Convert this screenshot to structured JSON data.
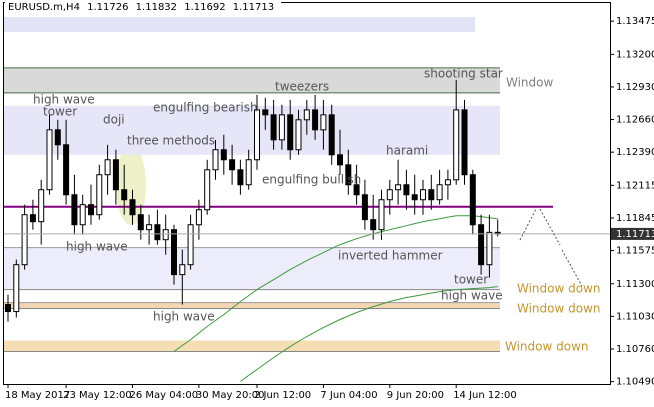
{
  "chart_data": {
    "type": "candlestick",
    "title": "EURUSD.m,H4",
    "categories": [
      "18 May 2017",
      null,
      null,
      null,
      null,
      null,
      null,
      "23 May 12:00",
      null,
      null,
      null,
      null,
      null,
      null,
      null,
      "26 May 04:00",
      null,
      null,
      null,
      null,
      null,
      null,
      null,
      "30 May 20:00",
      null,
      null,
      null,
      null,
      null,
      null,
      "2 Jun 12:00",
      null,
      null,
      null,
      null,
      null,
      null,
      null,
      "7 Jun 04:00",
      null,
      null,
      null,
      null,
      null,
      null,
      null,
      "9 Jun 20:00",
      null,
      null,
      null,
      null,
      null,
      null,
      null,
      "14 Jun 12:00",
      null,
      null,
      null,
      null,
      null
    ],
    "open": [
      1.11128,
      1.1107,
      1.11458,
      1.11872,
      1.11814,
      1.12079,
      1.12575,
      1.12451,
      1.12037,
      1.11789,
      1.11955,
      1.11872,
      1.12203,
      1.12327,
      1.12079,
      1.11996,
      1.11872,
      1.11748,
      1.11789,
      1.11665,
      1.11748,
      1.11376,
      1.11458,
      1.11789,
      1.11913,
      1.12244,
      1.1241,
      1.12327,
      1.12244,
      1.1212,
      1.12327,
      1.1274,
      1.12699,
      1.12492,
      1.12699,
      1.1241,
      1.12658,
      1.1274,
      1.12575,
      1.12699,
      1.12368,
      1.12285,
      1.1212,
      1.12037,
      1.11831,
      1.11748,
      1.11996,
      1.12079,
      1.1212,
      1.12037,
      1.11996,
      1.12079,
      1.11996,
      1.1212,
      1.12161,
      1.1274,
      1.12203,
      1.11789,
      1.11458,
      1.11726
    ],
    "high": [
      1.1121,
      1.115,
      1.11955,
      1.11996,
      1.12161,
      1.12699,
      1.12658,
      1.12658,
      1.12203,
      1.12037,
      1.1212,
      1.12285,
      1.12451,
      1.1241,
      1.12285,
      1.12079,
      1.11955,
      1.11872,
      1.11913,
      1.11872,
      1.11789,
      1.11583,
      1.11872,
      1.11996,
      1.12327,
      1.12492,
      1.12534,
      1.12451,
      1.12327,
      1.1241,
      1.12864,
      1.1284,
      1.12823,
      1.12782,
      1.12823,
      1.1274,
      1.12823,
      1.12864,
      1.12823,
      1.12782,
      1.12575,
      1.1241,
      1.12285,
      1.12161,
      1.12037,
      1.12079,
      1.12161,
      1.12327,
      1.12244,
      1.12203,
      1.12161,
      1.12203,
      1.12244,
      1.12244,
      1.12988,
      1.12823,
      1.12244,
      1.11872,
      1.11872,
      1.11832
    ],
    "low": [
      1.10987,
      1.1102,
      1.11417,
      1.11748,
      1.11624,
      1.12037,
      1.12327,
      1.11955,
      1.11707,
      1.11707,
      1.11789,
      1.11831,
      1.12037,
      1.11955,
      1.11872,
      1.11789,
      1.11665,
      1.11624,
      1.11624,
      1.11541,
      1.11293,
      1.11128,
      1.11417,
      1.11665,
      1.11872,
      1.12161,
      1.12203,
      1.1212,
      1.12037,
      1.12079,
      1.12244,
      1.12575,
      1.1241,
      1.1241,
      1.12327,
      1.12368,
      1.12534,
      1.12492,
      1.1241,
      1.12285,
      1.12203,
      1.12037,
      1.11955,
      1.11748,
      1.11665,
      1.11665,
      1.11872,
      1.11955,
      1.11913,
      1.11872,
      1.11872,
      1.11913,
      1.11955,
      1.11996,
      1.1212,
      1.1212,
      1.11707,
      1.11376,
      1.11351,
      1.11692
    ],
    "close": [
      1.1107,
      1.11458,
      1.11872,
      1.11814,
      1.12079,
      1.12575,
      1.12451,
      1.12037,
      1.11789,
      1.11955,
      1.11872,
      1.12203,
      1.12327,
      1.12079,
      1.11996,
      1.11872,
      1.11748,
      1.11789,
      1.11665,
      1.11748,
      1.11376,
      1.11458,
      1.11789,
      1.11913,
      1.12244,
      1.1241,
      1.12327,
      1.12244,
      1.1212,
      1.12327,
      1.1274,
      1.12699,
      1.12492,
      1.12699,
      1.1241,
      1.12658,
      1.1274,
      1.12575,
      1.12699,
      1.12368,
      1.12285,
      1.1212,
      1.12037,
      1.11831,
      1.11748,
      1.11996,
      1.12079,
      1.1212,
      1.12037,
      1.11996,
      1.12079,
      1.11996,
      1.1212,
      1.12161,
      1.1274,
      1.12203,
      1.11789,
      1.11458,
      1.11726,
      1.11713
    ],
    "indicators": [
      {
        "color": "#3c9a3c",
        "values": [
          null,
          null,
          null,
          null,
          null,
          null,
          null,
          null,
          null,
          null,
          null,
          null,
          null,
          null,
          null,
          null,
          null,
          null,
          null,
          null,
          1.10739,
          1.10789,
          1.10838,
          1.10892,
          1.10946,
          1.10996,
          1.11045,
          1.11099,
          1.11152,
          1.11202,
          1.11252,
          1.11293,
          1.11334,
          1.11376,
          1.11417,
          1.11455,
          1.11492,
          1.11525,
          1.11558,
          1.11591,
          1.11624,
          1.11649,
          1.11673,
          1.11694,
          1.11715,
          1.11732,
          1.11748,
          1.11765,
          1.11781,
          1.11798,
          1.11814,
          1.11827,
          1.11839,
          1.11852,
          1.11864,
          1.11864,
          1.11864,
          1.11856,
          1.11847,
          1.11839
        ]
      },
      {
        "color": "#3c9a3c",
        "values": [
          null,
          null,
          null,
          null,
          null,
          null,
          null,
          null,
          null,
          null,
          null,
          null,
          null,
          null,
          null,
          null,
          null,
          null,
          null,
          null,
          null,
          null,
          null,
          null,
          null,
          null,
          null,
          null,
          1.10491,
          1.10541,
          1.1059,
          1.1064,
          1.10689,
          1.10735,
          1.1078,
          1.10822,
          1.10863,
          1.109,
          1.10937,
          1.10971,
          1.11004,
          1.11033,
          1.11062,
          1.11087,
          1.11111,
          1.11132,
          1.11153,
          1.1117,
          1.11186,
          1.11198,
          1.1121,
          1.11223,
          1.11235,
          1.11244,
          1.11252,
          1.11256,
          1.1126,
          1.11264,
          1.11268,
          1.11277
        ]
      }
    ],
    "zones": [
      {
        "from": 1.13509,
        "to": 1.13385,
        "color": "#e3e3f6"
      },
      {
        "from": 1.13088,
        "to": 1.12881,
        "color": "#d9d9d9"
      },
      {
        "from": 1.12773,
        "to": 1.12368,
        "color": "#e6e6f8"
      },
      {
        "from": 1.11599,
        "to": 1.11252,
        "color": "#ececfa"
      },
      {
        "from": 1.11144,
        "to": 1.11095,
        "color": "#f5d6b4"
      },
      {
        "from": 1.1083,
        "to": 1.10739,
        "color": "#f5deb3"
      }
    ],
    "levels": [
      {
        "value": 1.11938,
        "color": "#800080"
      }
    ],
    "annotations": [
      "high wave",
      "tower",
      "doji",
      "engulfing bearish",
      "three methods",
      "tweezers",
      "shooting star",
      "Window",
      "harami",
      "engulfing bullish",
      "high wave",
      "inverted hammer",
      "tower",
      "high wave",
      "high wave",
      "Window down",
      "Window down",
      "Window down"
    ],
    "ylim": [
      1.1047,
      1.1365
    ],
    "yticks": [
      1.13475,
      {
        "value": 1.132,
        "label": "1.13200"
      },
      {
        "value": 1.1293,
        "label": "1.12930"
      },
      {
        "value": 1.1266,
        "label": "1.12660"
      },
      {
        "value": 1.1239,
        "label": "1.12390"
      },
      1.12115,
      1.11845,
      1.11575,
      {
        "value": 1.113,
        "label": "1.11300"
      },
      {
        "value": 1.1103,
        "label": "1.11030"
      },
      {
        "value": 1.1076,
        "label": "1.10760"
      },
      {
        "value": 1.1049,
        "label": "1.10490"
      }
    ],
    "up_color": "#ffffff",
    "down_color": "#000000"
  }
}
